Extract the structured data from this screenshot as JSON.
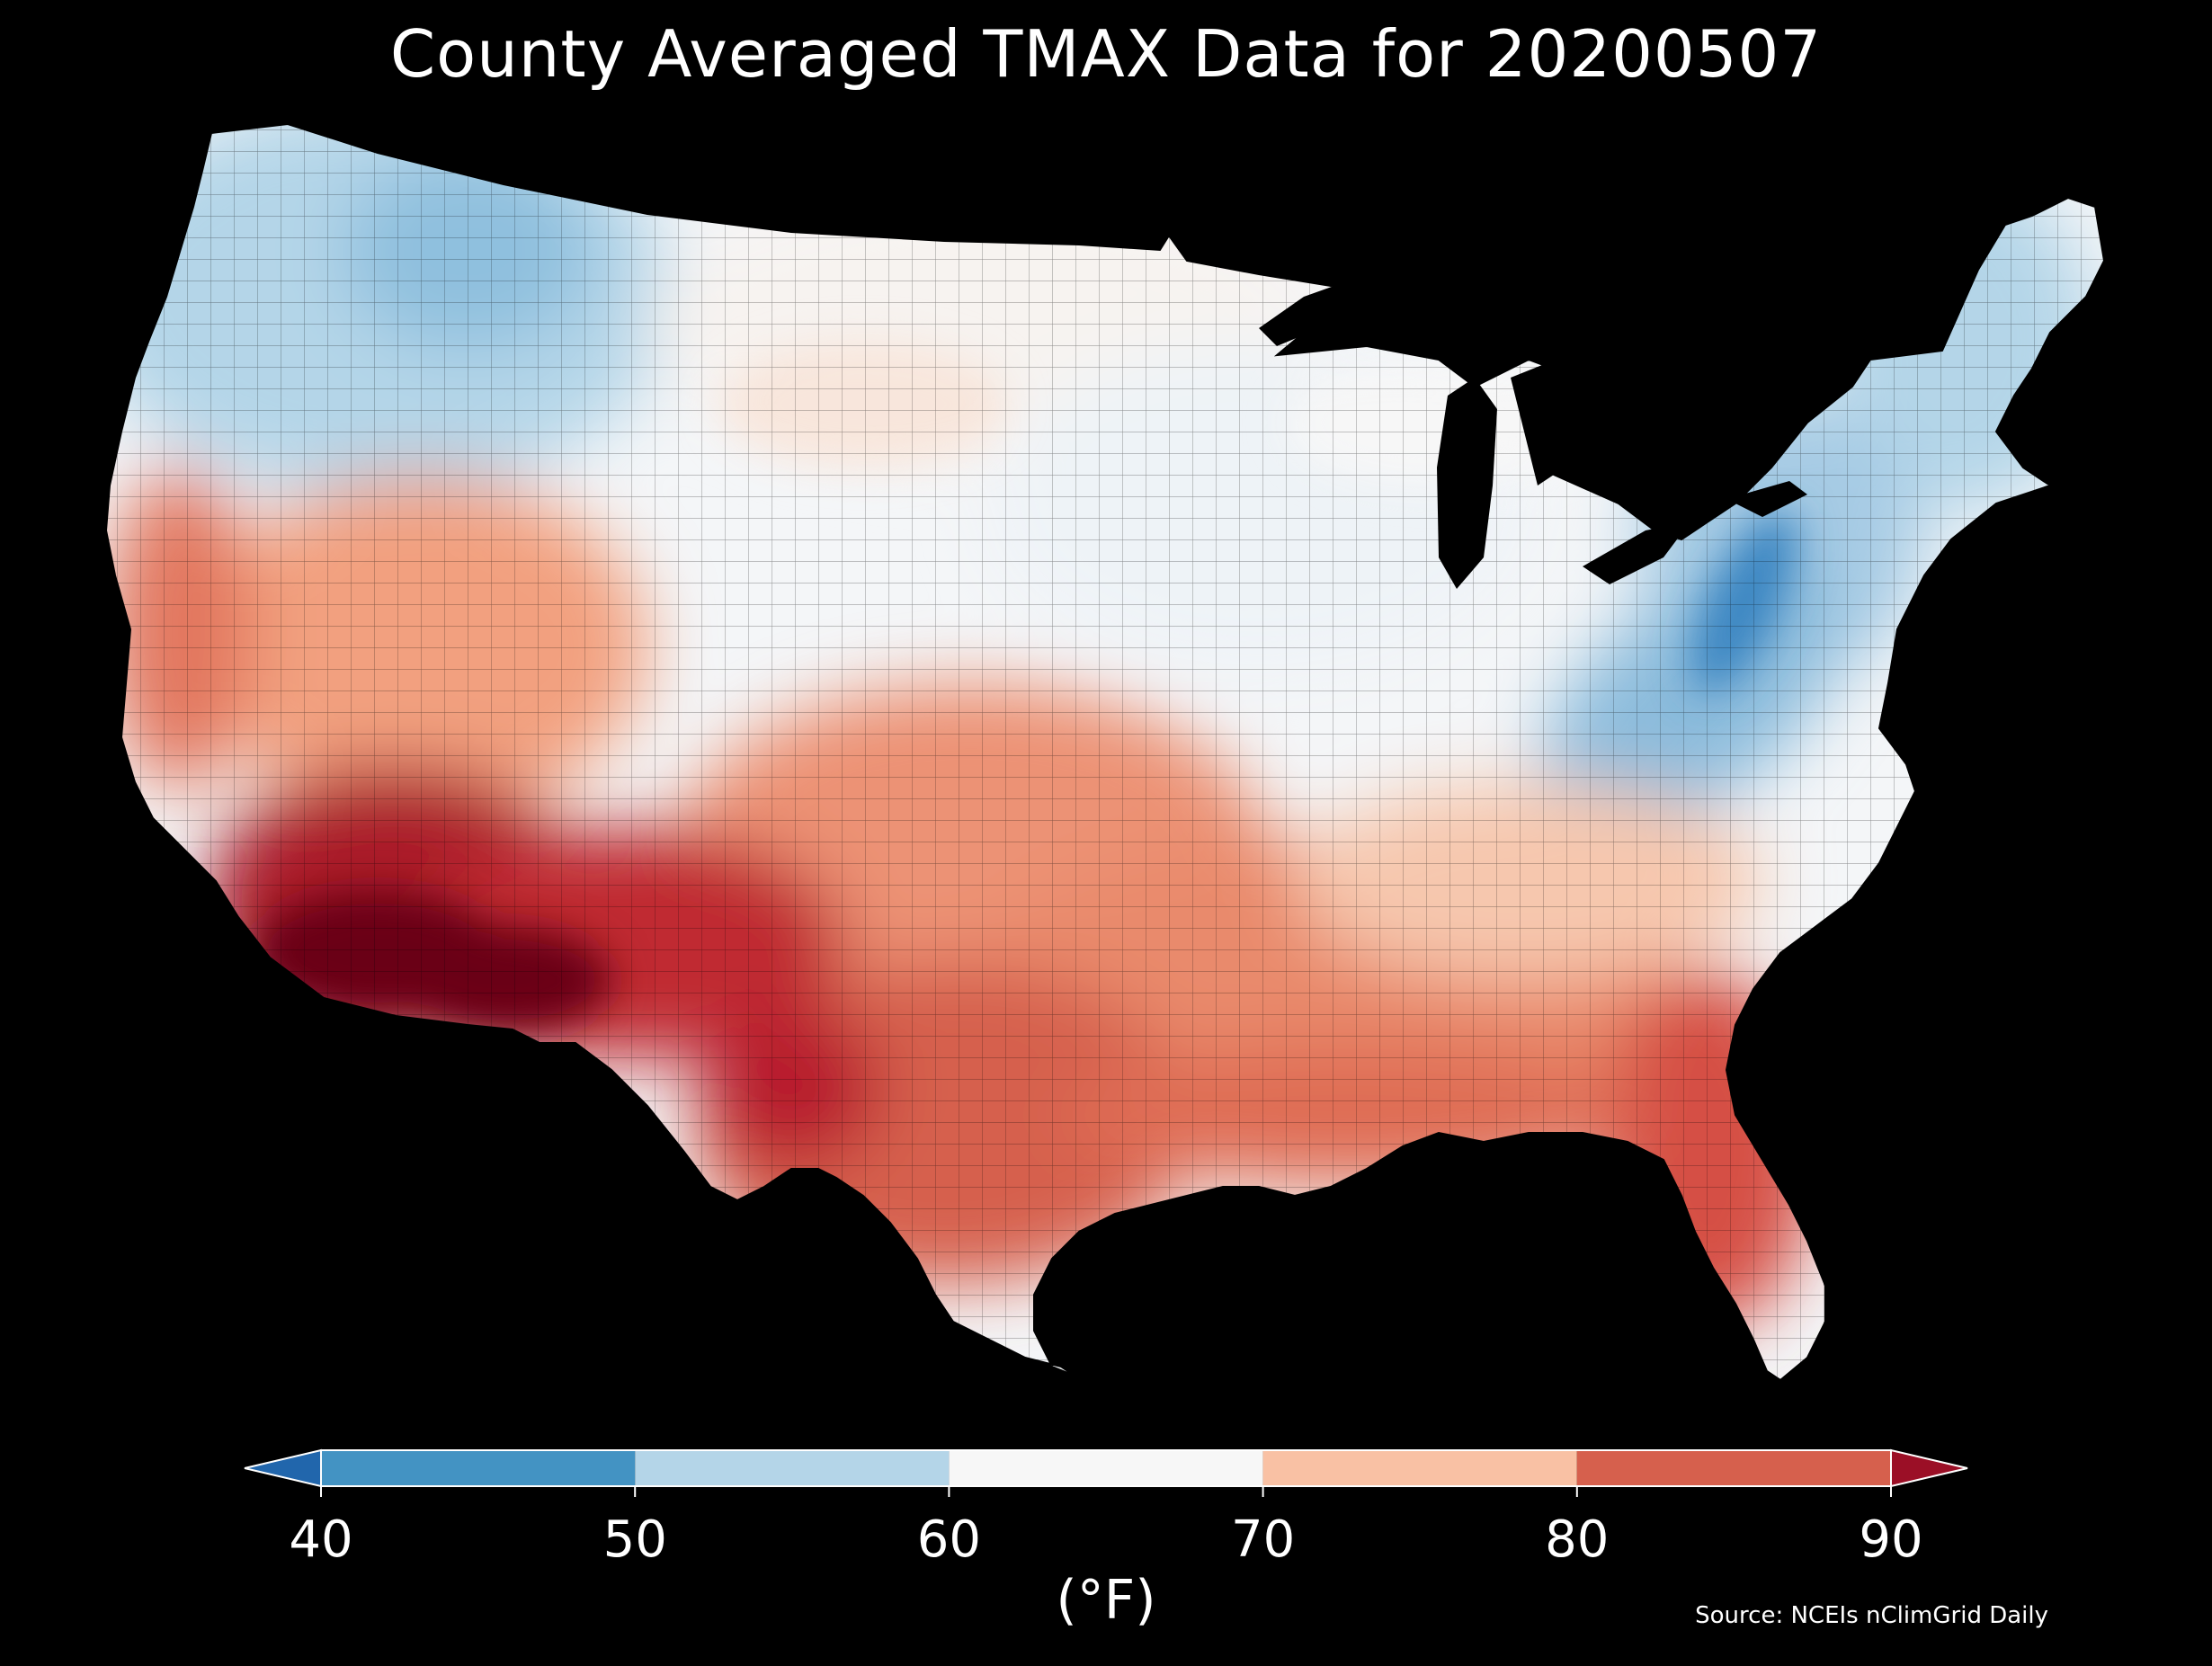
{
  "title": "County Averaged TMAX Data for 20200507",
  "unit_label": "(°F)",
  "source": "Source: NCEIs nClimGrid Daily",
  "colorbar": {
    "ticks": [
      "40",
      "50",
      "60",
      "70",
      "80",
      "90"
    ],
    "bins": [
      {
        "range": "<40",
        "color": "#2166ac"
      },
      {
        "range": "40-50",
        "color": "#4393c3"
      },
      {
        "range": "50-60",
        "color": "#b4d5e8"
      },
      {
        "range": "60-70",
        "color": "#f7f7f7"
      },
      {
        "range": "70-80",
        "color": "#f9c1a4"
      },
      {
        "range": "80-90",
        "color": "#d6604d"
      },
      {
        "range": ">90",
        "color": "#9b0f26"
      }
    ]
  },
  "map_regions": [
    {
      "region": "Pacific Northwest",
      "value": "50-60"
    },
    {
      "region": "Northern Rockies",
      "value": "50-60"
    },
    {
      "region": "Northern Plains",
      "value": "60-70"
    },
    {
      "region": "Great Lakes",
      "value": "60-70"
    },
    {
      "region": "Appalachians",
      "value": "40-50"
    },
    {
      "region": "Northeast",
      "value": "50-60"
    },
    {
      "region": "Great Basin",
      "value": "70-80"
    },
    {
      "region": "Southern California",
      "value": "80-90"
    },
    {
      "region": "Desert Southwest",
      "value": ">90"
    },
    {
      "region": "Texas",
      "value": "80-90"
    },
    {
      "region": "Gulf Coast",
      "value": "80-90"
    },
    {
      "region": "Florida",
      "value": "80-90"
    },
    {
      "region": "Southeast",
      "value": "70-80"
    }
  ]
}
